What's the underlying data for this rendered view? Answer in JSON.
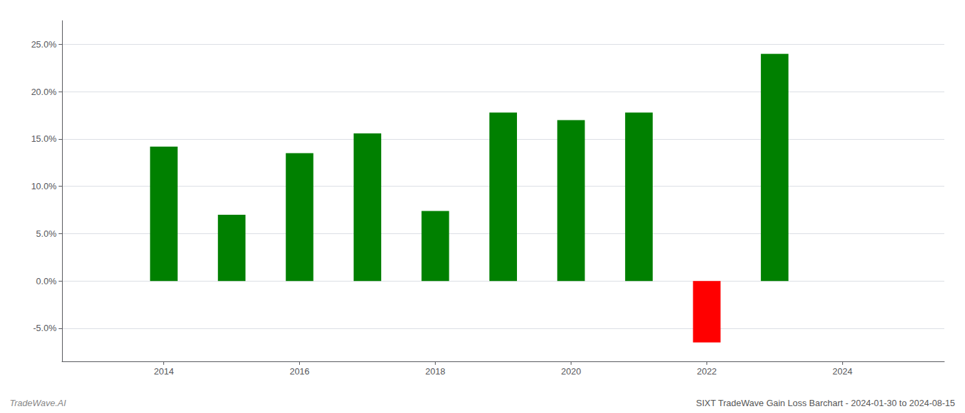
{
  "chart_data": {
    "type": "bar",
    "x": [
      2014,
      2015,
      2016,
      2017,
      2018,
      2019,
      2020,
      2021,
      2022,
      2023
    ],
    "values": [
      0.142,
      0.07,
      0.135,
      0.156,
      0.074,
      0.178,
      0.17,
      0.178,
      -0.065,
      0.24
    ],
    "colors": [
      "#008000",
      "#008000",
      "#008000",
      "#008000",
      "#008000",
      "#008000",
      "#008000",
      "#008000",
      "#ff0000",
      "#008000"
    ],
    "xlim": [
      2012.5,
      2025.5
    ],
    "xticks": [
      2014,
      2016,
      2018,
      2020,
      2022,
      2024
    ],
    "ylim": [
      -0.085,
      0.275
    ],
    "yticks": [
      {
        "value": -0.05,
        "label": "-5.0%"
      },
      {
        "value": 0.0,
        "label": "0.0%"
      },
      {
        "value": 0.05,
        "label": "5.0%"
      },
      {
        "value": 0.1,
        "label": "10.0%"
      },
      {
        "value": 0.15,
        "label": "15.0%"
      },
      {
        "value": 0.2,
        "label": "20.0%"
      },
      {
        "value": 0.25,
        "label": "25.0%"
      }
    ],
    "grid": true,
    "annotations": [
      "TradeWave.AI",
      "SIXT TradeWave Gain Loss Barchart - 2024-01-30 to 2024-08-15"
    ]
  }
}
